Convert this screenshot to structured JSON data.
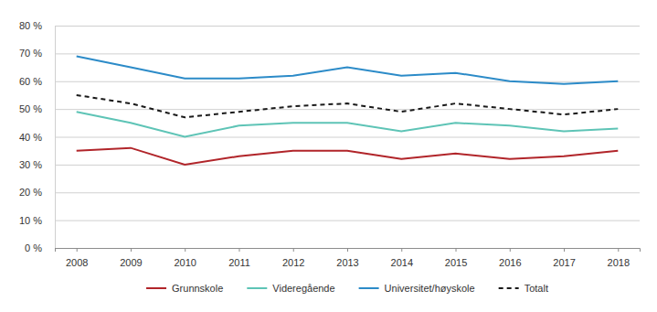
{
  "chart_data": {
    "type": "line",
    "categories": [
      "2008",
      "2009",
      "2010",
      "2011",
      "2012",
      "2013",
      "2014",
      "2015",
      "2016",
      "2017",
      "2018"
    ],
    "series": [
      {
        "name": "Grunnskole",
        "color": "#b1252a",
        "line_style": "solid",
        "values": [
          35,
          36,
          30,
          33,
          35,
          35,
          32,
          34,
          32,
          33,
          35
        ]
      },
      {
        "name": "Videregående",
        "color": "#5ec4b6",
        "line_style": "solid",
        "values": [
          49,
          45,
          40,
          44,
          45,
          45,
          42,
          45,
          44,
          42,
          43
        ]
      },
      {
        "name": "Universitet/høyskole",
        "color": "#2c8bc8",
        "line_style": "solid",
        "values": [
          69,
          65,
          61,
          61,
          62,
          65,
          62,
          63,
          60,
          59,
          60
        ]
      },
      {
        "name": "Totalt",
        "color": "#1a1a1a",
        "line_style": "dashed",
        "values": [
          55,
          52,
          47,
          49,
          51,
          52,
          49,
          52,
          50,
          48,
          50
        ]
      }
    ],
    "ylim": [
      0,
      80
    ],
    "yticks": [
      {
        "value": 0,
        "label": "0 %"
      },
      {
        "value": 10,
        "label": "10 %"
      },
      {
        "value": 20,
        "label": "20 %"
      },
      {
        "value": 30,
        "label": "30 %"
      },
      {
        "value": 40,
        "label": "40 %"
      },
      {
        "value": 50,
        "label": "50 %"
      },
      {
        "value": 60,
        "label": "60 %"
      },
      {
        "value": 70,
        "label": "70 %"
      },
      {
        "value": 80,
        "label": "80 %"
      }
    ],
    "grid": true,
    "legend": "bottom"
  }
}
